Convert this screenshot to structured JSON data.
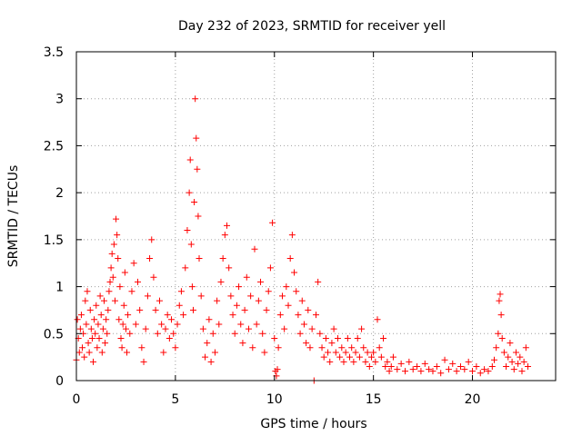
{
  "chart_data": {
    "type": "scatter",
    "title": "Day 232 of 2023, SRMTID for receiver yell",
    "xlabel": "GPS time / hours",
    "ylabel": "SRMTID / TECUs",
    "xlim": [
      0,
      24.2
    ],
    "ylim": [
      0,
      3.5
    ],
    "x_ticks": [
      0,
      5,
      10,
      15,
      20
    ],
    "x_tick_labels": [
      "0",
      "5",
      "10",
      "15",
      "20"
    ],
    "y_ticks": [
      0,
      0.5,
      1,
      1.5,
      2,
      2.5,
      3,
      3.5
    ],
    "y_tick_labels": [
      "0",
      "0.5",
      "1",
      "1.5",
      "2",
      "2.5",
      "3",
      "3.5"
    ],
    "grid": true,
    "marker": "+",
    "color": "#ff0000",
    "series": [
      {
        "name": "SRMTID",
        "points": [
          [
            0.0,
            0.22
          ],
          [
            0.05,
            0.65
          ],
          [
            0.1,
            0.45
          ],
          [
            0.15,
            0.3
          ],
          [
            0.2,
            0.55
          ],
          [
            0.25,
            0.7
          ],
          [
            0.3,
            0.35
          ],
          [
            0.35,
            0.5
          ],
          [
            0.4,
            0.25
          ],
          [
            0.45,
            0.85
          ],
          [
            0.5,
            0.6
          ],
          [
            0.55,
            0.95
          ],
          [
            0.6,
            0.4
          ],
          [
            0.65,
            0.3
          ],
          [
            0.7,
            0.75
          ],
          [
            0.75,
            0.55
          ],
          [
            0.8,
            0.45
          ],
          [
            0.85,
            0.2
          ],
          [
            0.9,
            0.65
          ],
          [
            0.95,
            0.5
          ],
          [
            1.0,
            0.8
          ],
          [
            1.05,
            0.35
          ],
          [
            1.1,
            0.6
          ],
          [
            1.15,
            0.45
          ],
          [
            1.2,
            0.9
          ],
          [
            1.25,
            0.7
          ],
          [
            1.3,
            0.3
          ],
          [
            1.35,
            0.55
          ],
          [
            1.4,
            0.85
          ],
          [
            1.45,
            0.4
          ],
          [
            1.5,
            0.65
          ],
          [
            1.55,
            0.5
          ],
          [
            1.6,
            0.75
          ],
          [
            1.65,
            0.95
          ],
          [
            1.7,
            1.05
          ],
          [
            1.75,
            1.2
          ],
          [
            1.8,
            1.35
          ],
          [
            1.85,
            1.1
          ],
          [
            1.9,
            1.45
          ],
          [
            1.95,
            0.85
          ],
          [
            2.0,
            1.72
          ],
          [
            2.05,
            1.55
          ],
          [
            2.1,
            1.3
          ],
          [
            2.15,
            0.65
          ],
          [
            2.2,
            1.0
          ],
          [
            2.25,
            0.45
          ],
          [
            2.3,
            0.35
          ],
          [
            2.35,
            0.6
          ],
          [
            2.4,
            0.8
          ],
          [
            2.45,
            1.15
          ],
          [
            2.5,
            0.55
          ],
          [
            2.55,
            0.3
          ],
          [
            2.6,
            0.7
          ],
          [
            2.7,
            0.5
          ],
          [
            2.8,
            0.95
          ],
          [
            2.9,
            1.25
          ],
          [
            3.0,
            0.6
          ],
          [
            3.1,
            1.05
          ],
          [
            3.2,
            0.75
          ],
          [
            3.3,
            0.35
          ],
          [
            3.4,
            0.2
          ],
          [
            3.5,
            0.55
          ],
          [
            3.6,
            0.9
          ],
          [
            3.7,
            1.3
          ],
          [
            3.8,
            1.5
          ],
          [
            3.9,
            1.1
          ],
          [
            4.0,
            0.75
          ],
          [
            4.1,
            0.5
          ],
          [
            4.2,
            0.85
          ],
          [
            4.3,
            0.6
          ],
          [
            4.4,
            0.3
          ],
          [
            4.5,
            0.55
          ],
          [
            4.6,
            0.7
          ],
          [
            4.7,
            0.45
          ],
          [
            4.8,
            0.65
          ],
          [
            4.9,
            0.5
          ],
          [
            5.0,
            0.35
          ],
          [
            5.1,
            0.6
          ],
          [
            5.2,
            0.8
          ],
          [
            5.3,
            0.95
          ],
          [
            5.4,
            0.7
          ],
          [
            5.5,
            1.2
          ],
          [
            5.6,
            1.6
          ],
          [
            5.7,
            2.0
          ],
          [
            5.75,
            2.35
          ],
          [
            5.8,
            1.45
          ],
          [
            5.85,
            1.0
          ],
          [
            5.9,
            0.75
          ],
          [
            5.95,
            1.9
          ],
          [
            6.0,
            3.0
          ],
          [
            6.05,
            2.58
          ],
          [
            6.1,
            2.25
          ],
          [
            6.15,
            1.75
          ],
          [
            6.2,
            1.3
          ],
          [
            6.3,
            0.9
          ],
          [
            6.4,
            0.55
          ],
          [
            6.5,
            0.25
          ],
          [
            6.6,
            0.4
          ],
          [
            6.7,
            0.65
          ],
          [
            6.8,
            0.2
          ],
          [
            6.9,
            0.5
          ],
          [
            7.0,
            0.3
          ],
          [
            7.1,
            0.85
          ],
          [
            7.2,
            0.6
          ],
          [
            7.3,
            1.05
          ],
          [
            7.4,
            1.3
          ],
          [
            7.5,
            1.55
          ],
          [
            7.6,
            1.65
          ],
          [
            7.7,
            1.2
          ],
          [
            7.8,
            0.9
          ],
          [
            7.9,
            0.7
          ],
          [
            8.0,
            0.5
          ],
          [
            8.1,
            0.8
          ],
          [
            8.2,
            1.0
          ],
          [
            8.3,
            0.6
          ],
          [
            8.4,
            0.4
          ],
          [
            8.5,
            0.75
          ],
          [
            8.6,
            1.1
          ],
          [
            8.7,
            0.55
          ],
          [
            8.8,
            0.9
          ],
          [
            8.9,
            0.35
          ],
          [
            9.0,
            1.4
          ],
          [
            9.1,
            0.6
          ],
          [
            9.2,
            0.85
          ],
          [
            9.3,
            1.05
          ],
          [
            9.4,
            0.5
          ],
          [
            9.5,
            0.3
          ],
          [
            9.6,
            0.75
          ],
          [
            9.7,
            0.95
          ],
          [
            9.8,
            1.2
          ],
          [
            9.9,
            1.68
          ],
          [
            10.0,
            0.45
          ],
          [
            10.05,
            0.1
          ],
          [
            10.1,
            0.05
          ],
          [
            10.15,
            0.12
          ],
          [
            10.2,
            0.35
          ],
          [
            10.3,
            0.7
          ],
          [
            10.4,
            0.9
          ],
          [
            10.5,
            0.55
          ],
          [
            10.6,
            1.0
          ],
          [
            10.7,
            0.8
          ],
          [
            10.8,
            1.3
          ],
          [
            10.9,
            1.55
          ],
          [
            11.0,
            1.15
          ],
          [
            11.1,
            0.95
          ],
          [
            11.2,
            0.7
          ],
          [
            11.3,
            0.5
          ],
          [
            11.4,
            0.85
          ],
          [
            11.5,
            0.6
          ],
          [
            11.6,
            0.4
          ],
          [
            11.7,
            0.75
          ],
          [
            11.8,
            0.35
          ],
          [
            11.9,
            0.55
          ],
          [
            12.0,
            0.0
          ],
          [
            12.1,
            0.7
          ],
          [
            12.2,
            1.05
          ],
          [
            12.3,
            0.5
          ],
          [
            12.4,
            0.35
          ],
          [
            12.5,
            0.25
          ],
          [
            12.6,
            0.45
          ],
          [
            12.7,
            0.3
          ],
          [
            12.8,
            0.2
          ],
          [
            12.9,
            0.4
          ],
          [
            13.0,
            0.55
          ],
          [
            13.1,
            0.3
          ],
          [
            13.2,
            0.45
          ],
          [
            13.3,
            0.25
          ],
          [
            13.4,
            0.35
          ],
          [
            13.5,
            0.2
          ],
          [
            13.6,
            0.3
          ],
          [
            13.7,
            0.45
          ],
          [
            13.8,
            0.25
          ],
          [
            13.9,
            0.35
          ],
          [
            14.0,
            0.2
          ],
          [
            14.1,
            0.3
          ],
          [
            14.2,
            0.45
          ],
          [
            14.3,
            0.25
          ],
          [
            14.4,
            0.55
          ],
          [
            14.5,
            0.35
          ],
          [
            14.6,
            0.2
          ],
          [
            14.7,
            0.3
          ],
          [
            14.8,
            0.15
          ],
          [
            14.9,
            0.25
          ],
          [
            15.0,
            0.3
          ],
          [
            15.1,
            0.2
          ],
          [
            15.2,
            0.65
          ],
          [
            15.3,
            0.35
          ],
          [
            15.4,
            0.25
          ],
          [
            15.5,
            0.45
          ],
          [
            15.6,
            0.15
          ],
          [
            15.7,
            0.2
          ],
          [
            15.8,
            0.1
          ],
          [
            15.9,
            0.15
          ],
          [
            16.0,
            0.25
          ],
          [
            16.2,
            0.12
          ],
          [
            16.4,
            0.18
          ],
          [
            16.6,
            0.1
          ],
          [
            16.8,
            0.2
          ],
          [
            17.0,
            0.12
          ],
          [
            17.2,
            0.15
          ],
          [
            17.4,
            0.1
          ],
          [
            17.6,
            0.18
          ],
          [
            17.8,
            0.12
          ],
          [
            18.0,
            0.1
          ],
          [
            18.2,
            0.15
          ],
          [
            18.4,
            0.08
          ],
          [
            18.6,
            0.22
          ],
          [
            18.8,
            0.12
          ],
          [
            19.0,
            0.18
          ],
          [
            19.2,
            0.1
          ],
          [
            19.4,
            0.15
          ],
          [
            19.6,
            0.12
          ],
          [
            19.8,
            0.2
          ],
          [
            20.0,
            0.1
          ],
          [
            20.2,
            0.15
          ],
          [
            20.4,
            0.08
          ],
          [
            20.6,
            0.12
          ],
          [
            20.8,
            0.1
          ],
          [
            21.0,
            0.15
          ],
          [
            21.1,
            0.22
          ],
          [
            21.2,
            0.35
          ],
          [
            21.3,
            0.5
          ],
          [
            21.35,
            0.85
          ],
          [
            21.4,
            0.92
          ],
          [
            21.45,
            0.7
          ],
          [
            21.5,
            0.45
          ],
          [
            21.6,
            0.3
          ],
          [
            21.7,
            0.15
          ],
          [
            21.8,
            0.25
          ],
          [
            21.9,
            0.4
          ],
          [
            22.0,
            0.2
          ],
          [
            22.1,
            0.12
          ],
          [
            22.2,
            0.3
          ],
          [
            22.3,
            0.18
          ],
          [
            22.4,
            0.25
          ],
          [
            22.5,
            0.1
          ],
          [
            22.6,
            0.2
          ],
          [
            22.7,
            0.35
          ],
          [
            22.8,
            0.15
          ]
        ]
      }
    ]
  }
}
